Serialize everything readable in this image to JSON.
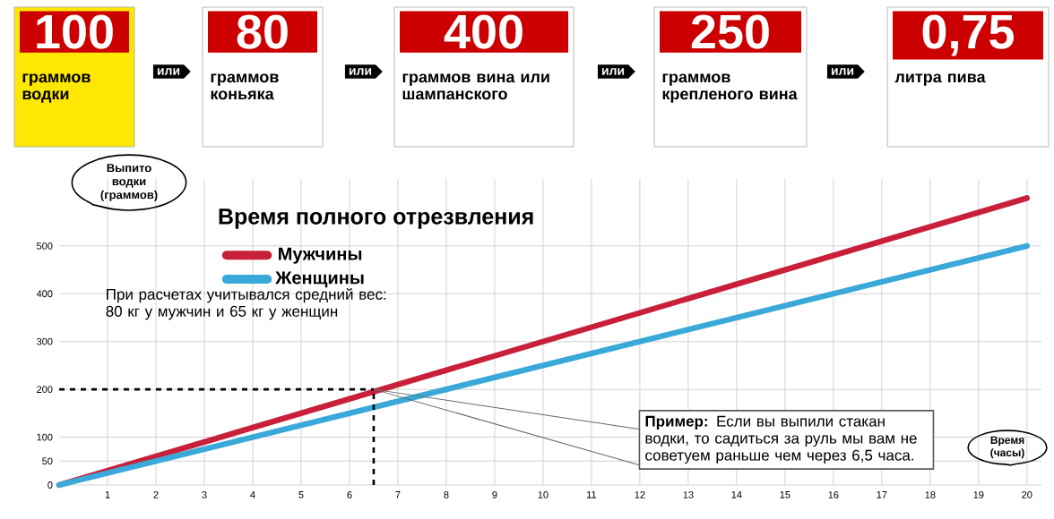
{
  "chart_data": {
    "type": "line",
    "title": "Время полного отрезвления",
    "xlabel": "Время (часы)",
    "ylabel": "Выпито водки (граммов)",
    "x": [
      0,
      20
    ],
    "series": [
      {
        "name": "Мужчины",
        "color": "#c8203a",
        "values": [
          0,
          600
        ]
      },
      {
        "name": "Женщины",
        "color": "#3aa8d8",
        "values": [
          0,
          500
        ]
      }
    ],
    "xlim": [
      0,
      20.3
    ],
    "ylim": [
      0,
      640
    ],
    "xticks": [
      1,
      2,
      3,
      4,
      5,
      6,
      7,
      8,
      9,
      10,
      11,
      12,
      13,
      14,
      15,
      16,
      17,
      18,
      19,
      20
    ],
    "yticks": [
      0,
      50,
      100,
      200,
      300,
      400,
      500
    ],
    "grid": true,
    "legend": "top left",
    "line_style": "solid",
    "marker": "none",
    "ref_lines": [
      {
        "axis": "y",
        "value": 200,
        "line_style": "dashed"
      },
      {
        "axis": "x",
        "value": 6.5,
        "line_style": "dashed"
      }
    ],
    "annotations": [
      "100",
      "граммов водки",
      "или",
      "80",
      "граммов коньяка",
      "или",
      "400",
      "граммов вина или шампанского",
      "или",
      "250",
      "граммов крепленого вина",
      "или",
      "0,75",
      "литра пива",
      "При расчетах учитывался средний вес: 80 кг у мужчин и 65 кг у женщин",
      {
        "text": "**Пример:** Если вы выпили стакан водки, то садиться за руль мы вам не советуем раньше чем через 6,5 часа.",
        "x": 6.5,
        "y": 200
      }
    ]
  }
}
